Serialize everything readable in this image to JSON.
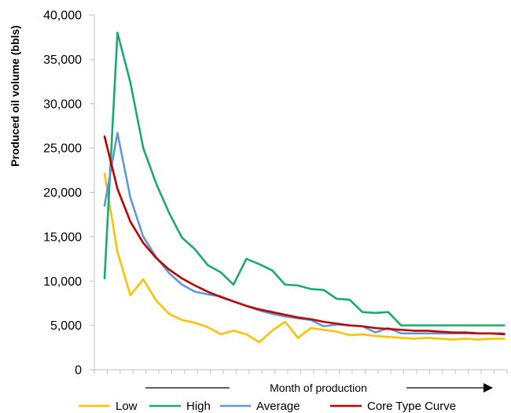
{
  "chart_data": {
    "type": "line",
    "title": "",
    "ylabel": "Produced oil volume (bbls)",
    "xlabel": "Month of production",
    "ylim": [
      0,
      40000
    ],
    "yticks": [
      0,
      5000,
      10000,
      15000,
      20000,
      25000,
      30000,
      35000,
      40000
    ],
    "ytick_labels": [
      "0",
      "5,000",
      "10,000",
      "15,000",
      "20,000",
      "25,000",
      "30,000",
      "35,000",
      "40,000"
    ],
    "x": [
      1,
      2,
      3,
      4,
      5,
      6,
      7,
      8,
      9,
      10,
      11,
      12,
      13,
      14,
      15,
      16,
      17,
      18,
      19,
      20,
      21,
      22,
      23,
      24,
      25,
      26,
      27,
      28,
      29,
      30,
      31,
      32
    ],
    "grid": false,
    "legend_position": "bottom",
    "series": [
      {
        "name": "Low",
        "color": "#FFC000",
        "values": [
          22100,
          13300,
          8400,
          10200,
          7800,
          6300,
          5600,
          5300,
          4800,
          4000,
          4400,
          4000,
          3100,
          4400,
          5400,
          3600,
          4700,
          4500,
          4300,
          3900,
          4000,
          3800,
          3700,
          3600,
          3500,
          3600,
          3500,
          3400,
          3500,
          3400,
          3500,
          3500
        ]
      },
      {
        "name": "High",
        "color": "#1AAA6E",
        "values": [
          10300,
          38000,
          32400,
          25000,
          21000,
          17700,
          14900,
          13600,
          11800,
          11000,
          9600,
          12500,
          11900,
          11200,
          9600,
          9500,
          9100,
          9000,
          8000,
          7900,
          6500,
          6400,
          6500,
          5000,
          5000,
          5000,
          5000,
          5000,
          5000,
          5000,
          5000,
          5000
        ]
      },
      {
        "name": "Average",
        "color": "#5B9BD5",
        "values": [
          18500,
          26700,
          19400,
          15000,
          12700,
          10900,
          9600,
          8800,
          8500,
          8300,
          7700,
          7200,
          6700,
          6300,
          6000,
          5800,
          5600,
          4900,
          5100,
          5000,
          4900,
          4200,
          4700,
          4100,
          4100,
          4100,
          4100,
          4100,
          4100,
          4100,
          4100,
          4100
        ]
      },
      {
        "name": "Core Type Curve",
        "color": "#C00000",
        "values": [
          26300,
          20400,
          16700,
          14300,
          12600,
          11300,
          10300,
          9500,
          8800,
          8200,
          7700,
          7200,
          6800,
          6500,
          6200,
          5900,
          5700,
          5400,
          5200,
          5000,
          4900,
          4700,
          4600,
          4500,
          4400,
          4400,
          4300,
          4200,
          4200,
          4100,
          4100,
          4000
        ]
      }
    ]
  }
}
